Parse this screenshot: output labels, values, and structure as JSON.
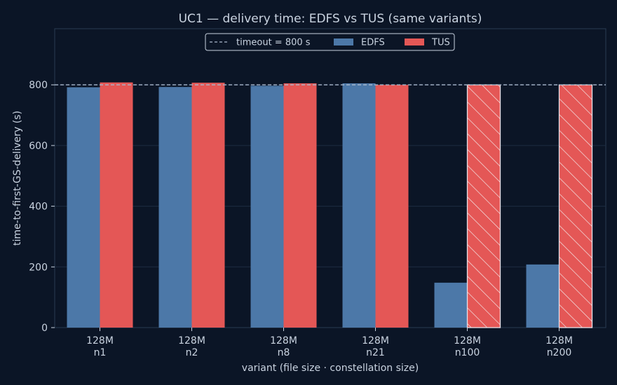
{
  "chart_data": {
    "type": "bar",
    "title": "UC1 — delivery time: EDFS vs TUS (same variants)",
    "xlabel": "variant (file size · constellation size)",
    "ylabel": "time-to-first-GS-delivery (s)",
    "ylim": [
      0,
      985
    ],
    "yticks": [
      0,
      200,
      400,
      600,
      800
    ],
    "grid": true,
    "legend_position": "top-center",
    "categories": [
      {
        "line1": "128M",
        "line2": "n1"
      },
      {
        "line1": "128M",
        "line2": "n2"
      },
      {
        "line1": "128M",
        "line2": "n8"
      },
      {
        "line1": "128M",
        "line2": "n21"
      },
      {
        "line1": "128M",
        "line2": "n100"
      },
      {
        "line1": "128M",
        "line2": "n200"
      }
    ],
    "series": [
      {
        "name": "EDFS",
        "color": "#4c78a8",
        "values": [
          792,
          793,
          797,
          805,
          148,
          208
        ],
        "timed_out": [
          false,
          false,
          false,
          false,
          false,
          false
        ]
      },
      {
        "name": "TUS",
        "color": "#e45756",
        "values": [
          808,
          807,
          805,
          800,
          800,
          800
        ],
        "timed_out": [
          false,
          false,
          false,
          false,
          true,
          true
        ]
      }
    ],
    "reference_line": {
      "label": "timeout = 800 s",
      "value": 800,
      "style": "dashed",
      "color": "#a9b8cc"
    },
    "colors": {
      "background": "#0b1526",
      "axes_border": "#2a3a52",
      "grid": "#1e2c42",
      "text": "#c9d3e0"
    }
  }
}
